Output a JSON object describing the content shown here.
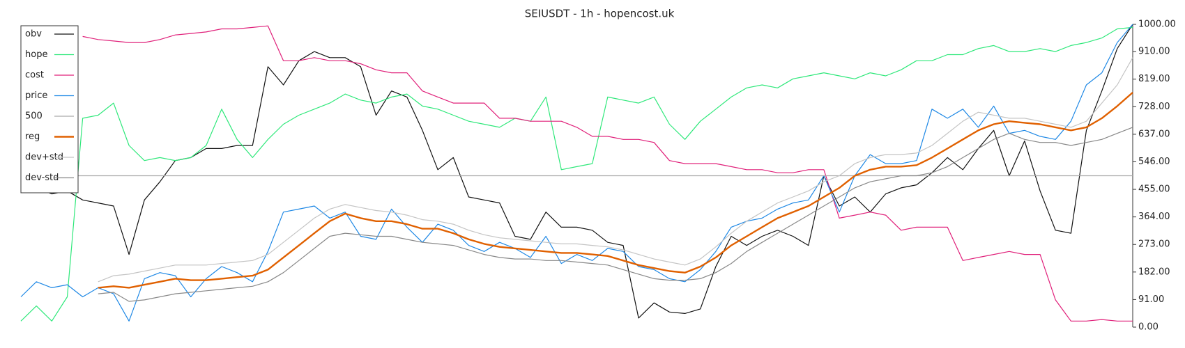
{
  "chart_data": {
    "type": "line",
    "title": "SEIUSDT - 1h - hopencost.uk",
    "ylim": [
      0,
      1000
    ],
    "y_axis_side": "right",
    "legend": "upper left",
    "yticks": [
      {
        "value": 0,
        "label": "0.00"
      },
      {
        "value": 91,
        "label": "91.00"
      },
      {
        "value": 182,
        "label": "182.00"
      },
      {
        "value": 273,
        "label": "273.00"
      },
      {
        "value": 364,
        "label": "364.00"
      },
      {
        "value": 455,
        "label": "455.00"
      },
      {
        "value": 546,
        "label": "546.00"
      },
      {
        "value": 637,
        "label": "637.00"
      },
      {
        "value": 728,
        "label": "728.00"
      },
      {
        "value": 819,
        "label": "819.00"
      },
      {
        "value": 910,
        "label": "910.00"
      },
      {
        "value": 1000,
        "label": "1000.00"
      }
    ],
    "series": [
      {
        "name": "obv",
        "color": "#111111",
        "width": 1.2,
        "values": [
          450,
          460,
          440,
          450,
          420,
          410,
          400,
          240,
          420,
          480,
          550,
          560,
          590,
          590,
          600,
          600,
          860,
          800,
          880,
          910,
          890,
          890,
          860,
          700,
          780,
          760,
          650,
          520,
          560,
          430,
          420,
          410,
          300,
          290,
          380,
          330,
          330,
          320,
          280,
          270,
          30,
          80,
          50,
          45,
          60,
          200,
          300,
          270,
          300,
          320,
          300,
          270,
          500,
          400,
          430,
          380,
          440,
          460,
          470,
          510,
          560,
          520,
          590,
          650,
          500,
          615,
          450,
          320,
          310,
          650,
          780,
          920,
          1000
        ]
      },
      {
        "name": "hope",
        "color": "#2ee87a",
        "width": 1.2,
        "values": [
          20,
          70,
          20,
          100,
          690,
          700,
          740,
          600,
          550,
          560,
          550,
          560,
          600,
          720,
          620,
          560,
          620,
          670,
          700,
          720,
          740,
          770,
          750,
          740,
          760,
          770,
          730,
          720,
          700,
          680,
          670,
          660,
          690,
          680,
          760,
          520,
          530,
          540,
          760,
          750,
          740,
          760,
          670,
          620,
          680,
          720,
          760,
          790,
          800,
          790,
          820,
          830,
          840,
          830,
          820,
          840,
          830,
          850,
          880,
          880,
          900,
          900,
          920,
          930,
          910,
          910,
          920,
          910,
          930,
          940,
          955,
          985,
          990
        ]
      },
      {
        "name": "cost",
        "color": "#e0207a",
        "width": 1.2,
        "values": [
          null,
          null,
          null,
          null,
          960,
          950,
          945,
          940,
          940,
          950,
          965,
          970,
          975,
          985,
          985,
          990,
          995,
          880,
          880,
          890,
          880,
          880,
          870,
          850,
          840,
          840,
          780,
          760,
          740,
          740,
          740,
          690,
          690,
          680,
          680,
          680,
          660,
          630,
          630,
          620,
          620,
          610,
          550,
          540,
          540,
          540,
          530,
          520,
          520,
          510,
          510,
          520,
          520,
          360,
          370,
          380,
          370,
          320,
          330,
          330,
          330,
          220,
          230,
          240,
          250,
          240,
          240,
          90,
          20,
          20,
          25,
          20,
          20
        ]
      },
      {
        "name": "price",
        "color": "#1e88e5",
        "width": 1.2,
        "values": [
          100,
          150,
          130,
          140,
          100,
          130,
          110,
          20,
          160,
          180,
          170,
          100,
          160,
          200,
          180,
          150,
          250,
          380,
          390,
          400,
          360,
          380,
          300,
          290,
          390,
          330,
          280,
          340,
          320,
          270,
          250,
          280,
          260,
          230,
          300,
          210,
          240,
          220,
          260,
          250,
          200,
          190,
          160,
          150,
          190,
          250,
          330,
          350,
          360,
          390,
          410,
          420,
          500,
          380,
          500,
          570,
          540,
          540,
          550,
          720,
          690,
          720,
          660,
          730,
          640,
          650,
          630,
          620,
          680,
          800,
          840,
          940,
          1000
        ]
      },
      {
        "name": "500",
        "color": "#aaaaaa",
        "width": 1.2,
        "values": [
          500,
          500,
          500,
          500,
          500,
          500,
          500,
          500,
          500,
          500,
          500,
          500,
          500,
          500,
          500,
          500,
          500,
          500,
          500,
          500,
          500,
          500,
          500,
          500,
          500,
          500,
          500,
          500,
          500,
          500,
          500,
          500,
          500,
          500,
          500,
          500,
          500,
          500,
          500,
          500,
          500,
          500,
          500,
          500,
          500,
          500,
          500,
          500,
          500,
          500,
          500,
          500,
          500,
          500,
          500,
          500,
          500,
          500,
          500,
          500,
          500,
          500,
          500,
          500,
          500,
          500,
          500,
          500,
          500,
          500,
          500,
          500,
          500
        ]
      },
      {
        "name": "reg",
        "color": "#e06000",
        "width": 2.4,
        "values": [
          null,
          null,
          null,
          null,
          null,
          130,
          135,
          130,
          140,
          150,
          160,
          155,
          155,
          160,
          165,
          170,
          190,
          230,
          270,
          310,
          350,
          375,
          360,
          350,
          350,
          340,
          325,
          325,
          310,
          290,
          275,
          265,
          260,
          255,
          250,
          245,
          245,
          240,
          235,
          220,
          205,
          195,
          185,
          180,
          200,
          230,
          270,
          300,
          330,
          360,
          380,
          400,
          430,
          460,
          500,
          520,
          530,
          530,
          535,
          560,
          590,
          620,
          650,
          670,
          680,
          675,
          670,
          660,
          650,
          660,
          690,
          730,
          775
        ]
      },
      {
        "name": "dev+std",
        "color": "#c4c4c4",
        "width": 1.2,
        "values": [
          null,
          null,
          null,
          null,
          null,
          150,
          170,
          175,
          185,
          195,
          205,
          205,
          205,
          210,
          215,
          220,
          240,
          280,
          320,
          360,
          390,
          405,
          395,
          385,
          380,
          370,
          355,
          350,
          340,
          320,
          305,
          295,
          290,
          285,
          280,
          275,
          275,
          270,
          265,
          255,
          240,
          225,
          215,
          205,
          225,
          265,
          310,
          350,
          380,
          410,
          430,
          450,
          480,
          500,
          540,
          560,
          570,
          570,
          575,
          600,
          640,
          680,
          710,
          700,
          690,
          690,
          680,
          670,
          660,
          680,
          740,
          800,
          890
        ]
      },
      {
        "name": "dev-std",
        "color": "#888888",
        "width": 1.2,
        "values": [
          null,
          null,
          null,
          null,
          null,
          110,
          115,
          85,
          90,
          100,
          110,
          115,
          120,
          125,
          130,
          135,
          150,
          180,
          220,
          260,
          300,
          310,
          305,
          300,
          300,
          290,
          280,
          275,
          270,
          255,
          240,
          230,
          225,
          225,
          220,
          220,
          215,
          210,
          205,
          190,
          175,
          160,
          155,
          155,
          160,
          180,
          210,
          250,
          280,
          310,
          340,
          370,
          400,
          430,
          460,
          480,
          490,
          500,
          500,
          510,
          530,
          560,
          590,
          620,
          640,
          620,
          610,
          610,
          600,
          610,
          620,
          640,
          660
        ]
      }
    ]
  }
}
